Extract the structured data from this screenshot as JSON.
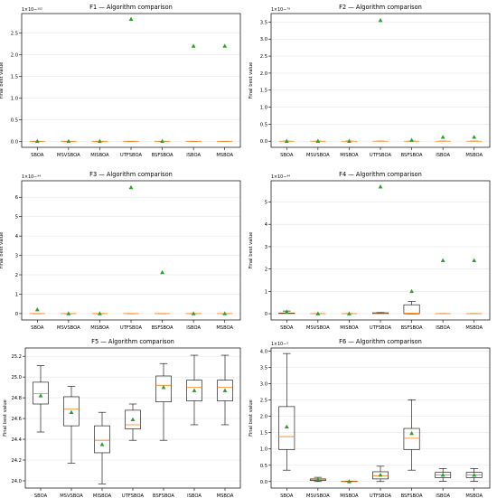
{
  "chart_data": [
    {
      "type": "box",
      "title": "F1 — Algorithm comparison",
      "ylabel": "Final best value",
      "exponent_label": "1e-102",
      "categories": [
        "SBOA",
        "MSVSBOA",
        "MISBOA",
        "UTFSBOA",
        "BSFSBOA",
        "ISBOA",
        "MSBOA"
      ],
      "yticks": [
        "0.0",
        "0.5",
        "1.0",
        "1.5",
        "2.0",
        "2.5"
      ],
      "ylim": [
        -0.14,
        2.95
      ],
      "series": [
        {
          "name": "SBOA",
          "q1": 0,
          "median": 0,
          "q3": 0,
          "whisker_low": 0,
          "whisker_high": 0,
          "mean": 0
        },
        {
          "name": "MSVSBOA",
          "q1": 0,
          "median": 0,
          "q3": 0,
          "whisker_low": 0,
          "whisker_high": 0,
          "mean": 0
        },
        {
          "name": "MISBOA",
          "q1": 0,
          "median": 0,
          "q3": 0,
          "whisker_low": 0,
          "whisker_high": 0,
          "mean": 0
        },
        {
          "name": "UTFSBOA",
          "q1": 0,
          "median": 0,
          "q3": 0,
          "whisker_low": 0,
          "whisker_high": 0,
          "mean": 2.82
        },
        {
          "name": "BSFSBOA",
          "q1": 0,
          "median": 0,
          "q3": 0,
          "whisker_low": 0,
          "whisker_high": 0,
          "mean": 0
        },
        {
          "name": "ISBOA",
          "q1": 0,
          "median": 0,
          "q3": 0,
          "whisker_low": 0,
          "whisker_high": 0,
          "mean": 2.2
        },
        {
          "name": "MSBOA",
          "q1": 0,
          "median": 0,
          "q3": 0,
          "whisker_low": 0,
          "whisker_high": 0,
          "mean": 2.2
        }
      ]
    },
    {
      "type": "box",
      "title": "F2 — Algorithm comparison",
      "ylabel": "Final best value",
      "exponent_label": "1e-79",
      "categories": [
        "SBOA",
        "MSVSBOA",
        "MISBOA",
        "UTFSBOA",
        "BSFSBOA",
        "ISBOA",
        "MSBOA"
      ],
      "yticks": [
        "0.0",
        "0.5",
        "1.0",
        "1.5",
        "2.0",
        "2.5",
        "3.0",
        "3.5"
      ],
      "ylim": [
        -0.18,
        3.75
      ],
      "series": [
        {
          "name": "SBOA",
          "q1": 0,
          "median": 0,
          "q3": 0,
          "whisker_low": 0,
          "whisker_high": 0,
          "mean": 0
        },
        {
          "name": "MSVSBOA",
          "q1": 0,
          "median": 0,
          "q3": 0,
          "whisker_low": 0,
          "whisker_high": 0,
          "mean": 0
        },
        {
          "name": "MISBOA",
          "q1": 0,
          "median": 0,
          "q3": 0,
          "whisker_low": 0,
          "whisker_high": 0,
          "mean": 0
        },
        {
          "name": "UTFSBOA",
          "q1": 0,
          "median": 0,
          "q3": 0,
          "whisker_low": 0,
          "whisker_high": 0,
          "mean": 3.55
        },
        {
          "name": "BSFSBOA",
          "q1": 0,
          "median": 0,
          "q3": 0,
          "whisker_low": 0,
          "whisker_high": 0,
          "mean": 0.03
        },
        {
          "name": "ISBOA",
          "q1": 0,
          "median": 0,
          "q3": 0,
          "whisker_low": 0,
          "whisker_high": 0,
          "mean": 0.12
        },
        {
          "name": "MSBOA",
          "q1": 0,
          "median": 0,
          "q3": 0,
          "whisker_low": 0,
          "whisker_high": 0,
          "mean": 0.12
        }
      ]
    },
    {
      "type": "box",
      "title": "F3 — Algorithm comparison",
      "ylabel": "Final best value",
      "exponent_label": "1e-94",
      "categories": [
        "SBOA",
        "MSVSBOA",
        "MISBOA",
        "UTFSBOA",
        "BSFSBOA",
        "ISBOA",
        "MSBOA"
      ],
      "yticks": [
        "0",
        "1",
        "2",
        "3",
        "4",
        "5",
        "6"
      ],
      "ylim": [
        -0.33,
        6.85
      ],
      "series": [
        {
          "name": "SBOA",
          "q1": 0,
          "median": 0,
          "q3": 0,
          "whisker_low": 0,
          "whisker_high": 0,
          "mean": 0.2
        },
        {
          "name": "MSVSBOA",
          "q1": 0,
          "median": 0,
          "q3": 0,
          "whisker_low": 0,
          "whisker_high": 0,
          "mean": 0
        },
        {
          "name": "MISBOA",
          "q1": 0,
          "median": 0,
          "q3": 0,
          "whisker_low": 0,
          "whisker_high": 0,
          "mean": 0
        },
        {
          "name": "UTFSBOA",
          "q1": 0,
          "median": 0,
          "q3": 0,
          "whisker_low": 0,
          "whisker_high": 0,
          "mean": 6.5
        },
        {
          "name": "BSFSBOA",
          "q1": 0,
          "median": 0,
          "q3": 0,
          "whisker_low": 0,
          "whisker_high": 0,
          "mean": 2.12
        },
        {
          "name": "ISBOA",
          "q1": 0,
          "median": 0,
          "q3": 0,
          "whisker_low": 0,
          "whisker_high": 0,
          "mean": 0
        },
        {
          "name": "MSBOA",
          "q1": 0,
          "median": 0,
          "q3": 0,
          "whisker_low": 0,
          "whisker_high": 0,
          "mean": 0
        }
      ]
    },
    {
      "type": "box",
      "title": "F4 — Algorithm comparison",
      "ylabel": "Final best value",
      "exponent_label": "1e-44",
      "categories": [
        "SBOA",
        "MSVSBOA",
        "MISBOA",
        "UTFSBOA",
        "BSFSBOA",
        "ISBOA",
        "MSBOA"
      ],
      "yticks": [
        "0",
        "1",
        "2",
        "3",
        "4",
        "5"
      ],
      "ylim": [
        -0.28,
        5.95
      ],
      "series": [
        {
          "name": "SBOA",
          "q1": 0,
          "median": 0,
          "q3": 0.03,
          "whisker_low": 0,
          "whisker_high": 0.12,
          "mean": 0.08
        },
        {
          "name": "MSVSBOA",
          "q1": 0,
          "median": 0,
          "q3": 0,
          "whisker_low": 0,
          "whisker_high": 0,
          "mean": 0
        },
        {
          "name": "MISBOA",
          "q1": 0,
          "median": 0,
          "q3": 0,
          "whisker_low": 0,
          "whisker_high": 0,
          "mean": 0
        },
        {
          "name": "UTFSBOA",
          "q1": 0,
          "median": 0,
          "q3": 0.04,
          "whisker_low": 0,
          "whisker_high": 0.05,
          "mean": 5.68
        },
        {
          "name": "BSFSBOA",
          "q1": 0,
          "median": 0.02,
          "q3": 0.4,
          "whisker_low": 0,
          "whisker_high": 0.55,
          "mean": 1.0
        },
        {
          "name": "ISBOA",
          "q1": 0,
          "median": 0,
          "q3": 0,
          "whisker_low": 0,
          "whisker_high": 0,
          "mean": 2.38
        },
        {
          "name": "MSBOA",
          "q1": 0,
          "median": 0,
          "q3": 0,
          "whisker_low": 0,
          "whisker_high": 0,
          "mean": 2.38
        }
      ]
    },
    {
      "type": "box",
      "title": "F5 — Algorithm comparison",
      "ylabel": "Final best value",
      "exponent_label": "",
      "categories": [
        "SBOA",
        "MSVSBOA",
        "MISBOA",
        "UTFSBOA",
        "BSFSBOA",
        "ISBOA",
        "MSBOA"
      ],
      "yticks": [
        "24.0",
        "24.2",
        "24.4",
        "24.6",
        "24.8",
        "25.0",
        "25.2"
      ],
      "ylim": [
        23.93,
        25.28
      ],
      "series": [
        {
          "name": "SBOA",
          "q1": 24.74,
          "median": 24.84,
          "q3": 24.95,
          "whisker_low": 24.47,
          "whisker_high": 25.11,
          "mean": 24.82
        },
        {
          "name": "MSVSBOA",
          "q1": 24.53,
          "median": 24.69,
          "q3": 24.81,
          "whisker_low": 24.17,
          "whisker_high": 24.91,
          "mean": 24.66
        },
        {
          "name": "MISBOA",
          "q1": 24.27,
          "median": 24.39,
          "q3": 24.53,
          "whisker_low": 23.97,
          "whisker_high": 24.66,
          "mean": 24.35
        },
        {
          "name": "UTFSBOA",
          "q1": 24.5,
          "median": 24.54,
          "q3": 24.68,
          "whisker_low": 24.39,
          "whisker_high": 24.74,
          "mean": 24.59
        },
        {
          "name": "BSFSBOA",
          "q1": 24.76,
          "median": 24.92,
          "q3": 25.01,
          "whisker_low": 24.39,
          "whisker_high": 25.13,
          "mean": 24.9
        },
        {
          "name": "ISBOA",
          "q1": 24.77,
          "median": 24.9,
          "q3": 24.97,
          "whisker_low": 24.54,
          "whisker_high": 25.21,
          "mean": 24.87
        },
        {
          "name": "MSBOA",
          "q1": 24.77,
          "median": 24.9,
          "q3": 24.97,
          "whisker_low": 24.54,
          "whisker_high": 25.21,
          "mean": 24.87
        }
      ]
    },
    {
      "type": "box",
      "title": "F6 — Algorithm comparison",
      "ylabel": "Final best value",
      "exponent_label": "1e-5",
      "categories": [
        "SBOA",
        "MSVSBOA",
        "MISBOA",
        "UTFSBOA",
        "BSFSBOA",
        "ISBOA",
        "MSBOA"
      ],
      "yticks": [
        "0.0",
        "0.5",
        "1.0",
        "1.5",
        "2.0",
        "2.5",
        "3.0",
        "3.5",
        "4.0"
      ],
      "ylim": [
        -0.2,
        4.1
      ],
      "series": [
        {
          "name": "SBOA",
          "q1": 0.98,
          "median": 1.38,
          "q3": 2.3,
          "whisker_low": 0.35,
          "whisker_high": 3.93,
          "mean": 1.68
        },
        {
          "name": "MSVSBOA",
          "q1": 0.03,
          "median": 0.05,
          "q3": 0.08,
          "whisker_low": 0.0,
          "whisker_high": 0.13,
          "mean": 0.06
        },
        {
          "name": "MISBOA",
          "q1": 0,
          "median": 0,
          "q3": 0.01,
          "whisker_low": 0,
          "whisker_high": 0.01,
          "mean": 0.0
        },
        {
          "name": "UTFSBOA",
          "q1": 0.08,
          "median": 0.18,
          "q3": 0.3,
          "whisker_low": 0.0,
          "whisker_high": 0.47,
          "mean": 0.2
        },
        {
          "name": "BSFSBOA",
          "q1": 0.98,
          "median": 1.33,
          "q3": 1.63,
          "whisker_low": 0.35,
          "whisker_high": 2.51,
          "mean": 1.48
        },
        {
          "name": "ISBOA",
          "q1": 0.12,
          "median": 0.2,
          "q3": 0.28,
          "whisker_low": 0.01,
          "whisker_high": 0.4,
          "mean": 0.2
        },
        {
          "name": "MSBOA",
          "q1": 0.12,
          "median": 0.2,
          "q3": 0.28,
          "whisker_low": 0.01,
          "whisker_high": 0.4,
          "mean": 0.2
        }
      ]
    }
  ],
  "colors": {
    "box": "#000000",
    "median": "#ff7f0e",
    "mean_marker": "#2ca02c",
    "grid": "#e6e6e6"
  }
}
